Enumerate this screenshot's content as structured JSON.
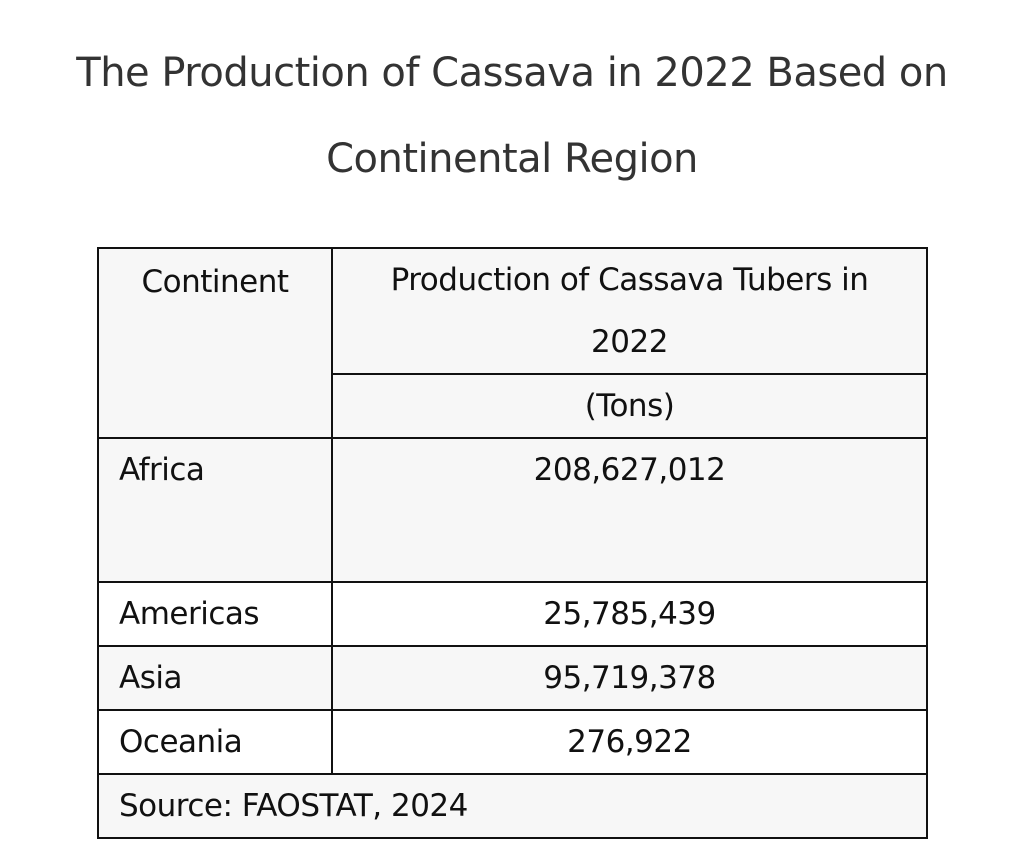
{
  "header": {
    "title": "The Production of Cassava in 2022 Based on Continental Region"
  },
  "table": {
    "columns": [
      "Continent",
      "Production of Cassava Tubers in 2022",
      "(Tons)"
    ],
    "rows": [
      [
        "Africa",
        "208,627,012"
      ],
      [
        "Americas",
        "25,785,439"
      ],
      [
        "Asia",
        "95,719,378"
      ],
      [
        "Oceania",
        "276,922"
      ]
    ],
    "source": "Source: FAOSTAT, 2024"
  }
}
